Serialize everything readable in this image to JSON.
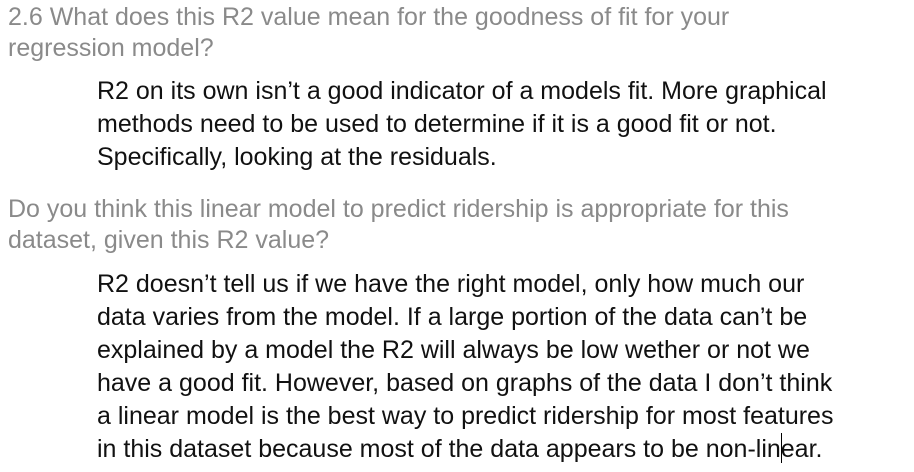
{
  "question1": {
    "lines": [
      "2.6 What does this R2 value mean for the goodness of fit for your",
      "regression model?"
    ]
  },
  "answer1": {
    "lines": [
      "R2 on its own isn’t a good indicator of a models fit. More graphical",
      "methods need to be used to determine if it is a good fit or not.",
      "Specifically, looking at the residuals."
    ]
  },
  "question2": {
    "lines": [
      "Do you think this linear model to predict ridership is appropriate for this",
      "dataset, given this R2 value?"
    ]
  },
  "answer2": {
    "lines": [
      "R2 doesn’t tell us if we have the right model, only how much our",
      "data varies from the model. If a large portion of the data can’t be",
      "explained by a model the R2 will always be low wether or not we",
      "have a good fit. However, based on graphs of the data I don’t think",
      "a linear model is the best way to predict ridership for most features"
    ],
    "last_line_before_cursor": "in this dataset because most of the data appears to be non-lin",
    "last_line_after_cursor": "ear."
  }
}
